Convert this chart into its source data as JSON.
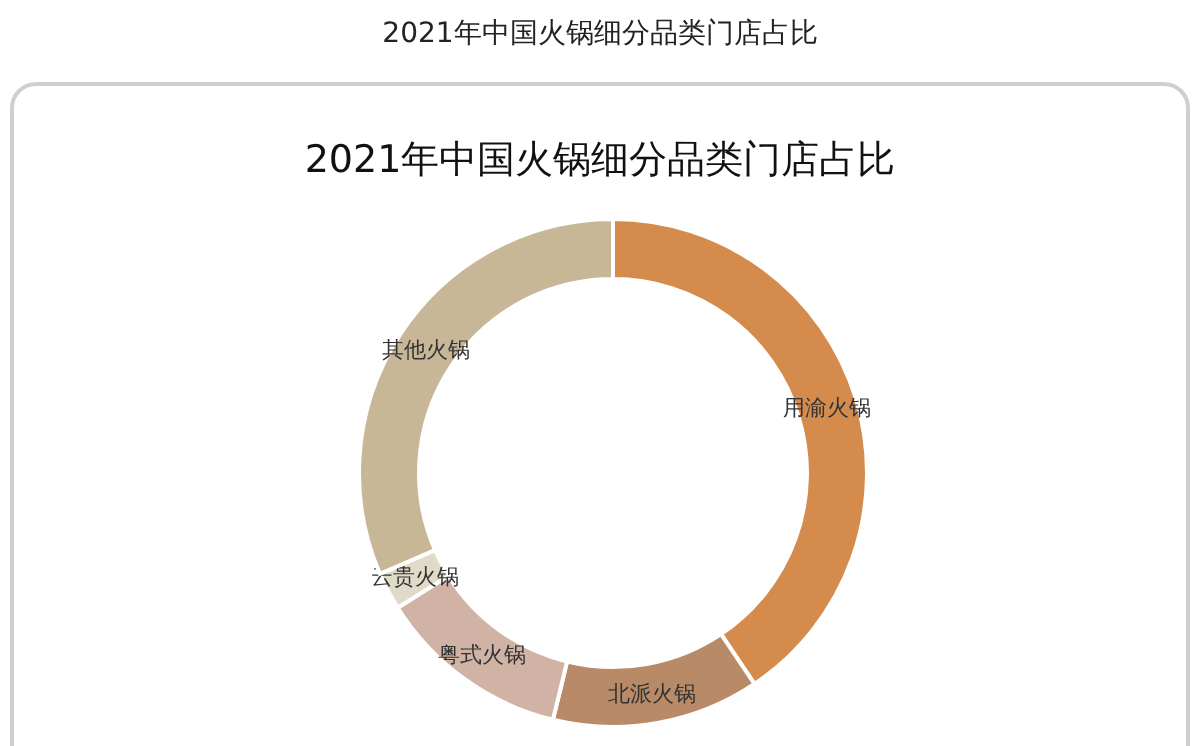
{
  "chart_data": {
    "type": "donut",
    "title": "2021年中国火锅细分品类门店占比",
    "subtitle": "2021年中国火锅细分品类门店占比",
    "categories": [
      "用渝火锅",
      "北派火锅",
      "粤式火锅",
      "云贵火锅",
      "其他火锅"
    ],
    "values": [
      40.6,
      13.2,
      12.3,
      2.4,
      31.5
    ],
    "colors": [
      "#d58b4c",
      "#b88a67",
      "#d1b3a6",
      "#e0dac8",
      "#c8b797"
    ]
  }
}
